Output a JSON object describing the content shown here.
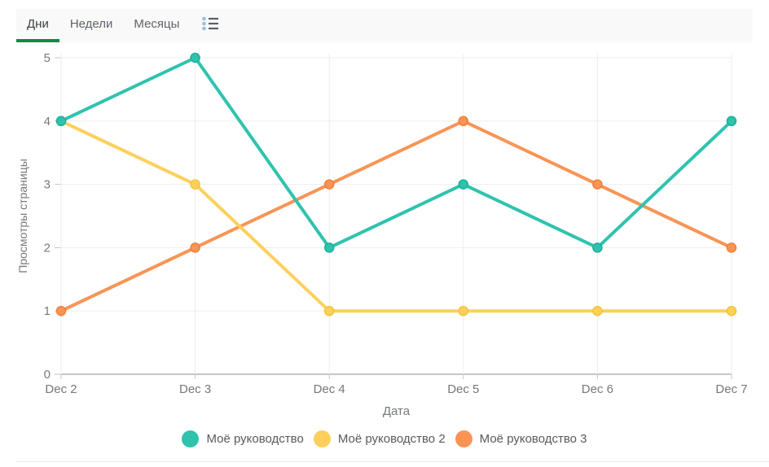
{
  "tab_bar": {
    "tabs": [
      {
        "label": "Дни",
        "active": true
      },
      {
        "label": "Недели",
        "active": false
      },
      {
        "label": "Месяцы",
        "active": false
      }
    ],
    "active_underline_color": "#0e8a47",
    "background": "#f9f9f9"
  },
  "chart_data": {
    "type": "line",
    "x": [
      "Dec 2",
      "Dec 3",
      "Dec 4",
      "Dec 5",
      "Dec 6",
      "Dec 7"
    ],
    "xlabel": "Дата",
    "ylabel": "Просмотры страницы",
    "ylim": [
      0,
      5
    ],
    "yticks": [
      0,
      1,
      2,
      3,
      4,
      5
    ],
    "grid": true,
    "legend_position": "bottom",
    "series": [
      {
        "name": "Моё руководство",
        "color": "#2fc3ae",
        "dot_color": "#1daf99",
        "values": [
          4,
          5,
          2,
          3,
          2,
          4
        ]
      },
      {
        "name": "Моё руководство 2",
        "color": "#fcd05b",
        "dot_color": "#f5c234",
        "values": [
          4,
          3,
          1,
          1,
          1,
          1
        ]
      },
      {
        "name": "Моё руководство 3",
        "color": "#f99455",
        "dot_color": "#ef8138",
        "values": [
          1,
          2,
          3,
          4,
          3,
          2
        ]
      }
    ]
  },
  "colors": {
    "grid_line": "#ededed",
    "axis_line": "#c6c6c6",
    "tick_text": "#76787a",
    "icon_dots": "#9fbdd8",
    "icon_lines": "#5b6066"
  }
}
